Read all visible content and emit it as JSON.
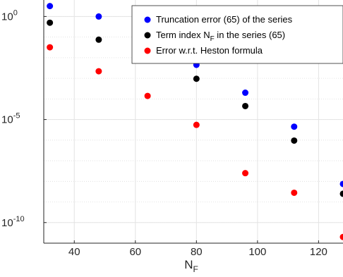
{
  "chart_data": {
    "type": "scatter",
    "title": "",
    "xlabel": "N",
    "xlabel_subscript": "F",
    "ylabel": "",
    "xlim": [
      30,
      128
    ],
    "ylim_log10": [
      -11,
      0.8
    ],
    "y_scale": "log",
    "grid": true,
    "legend_position": "top-right",
    "x_ticks": [
      {
        "value": 40,
        "label": "40"
      },
      {
        "value": 60,
        "label": "60"
      },
      {
        "value": 80,
        "label": "80"
      },
      {
        "value": 100,
        "label": "100"
      },
      {
        "value": 120,
        "label": "120"
      }
    ],
    "y_ticks": [
      {
        "exp": 0,
        "base": "10",
        "sup": "0"
      },
      {
        "exp": -5,
        "base": "10",
        "sup": "-5"
      },
      {
        "exp": -10,
        "base": "10",
        "sup": "-10"
      }
    ],
    "series": [
      {
        "name": "Truncation error (65) of the series",
        "color": "#0000ff",
        "x": [
          32,
          48,
          80,
          96,
          112,
          128
        ],
        "y": [
          3.2,
          1.0,
          0.0045,
          0.0002,
          4.5e-06,
          7.5e-09
        ]
      },
      {
        "name": "Term index N",
        "name_subscript": "F",
        "name_suffix": " in the series (65)",
        "color": "#000000",
        "x": [
          32,
          48,
          80,
          96,
          112,
          128
        ],
        "y": [
          0.5,
          0.075,
          0.00095,
          4.5e-05,
          9.5e-07,
          2.5e-09
        ]
      },
      {
        "name": "Error w.r.t. Heston formula",
        "color": "#ff0000",
        "x": [
          32,
          48,
          64,
          80,
          96,
          112,
          128
        ],
        "y": [
          0.032,
          0.0022,
          0.00014,
          5.5e-06,
          2.5e-08,
          2.8e-09,
          2e-11
        ]
      }
    ]
  }
}
